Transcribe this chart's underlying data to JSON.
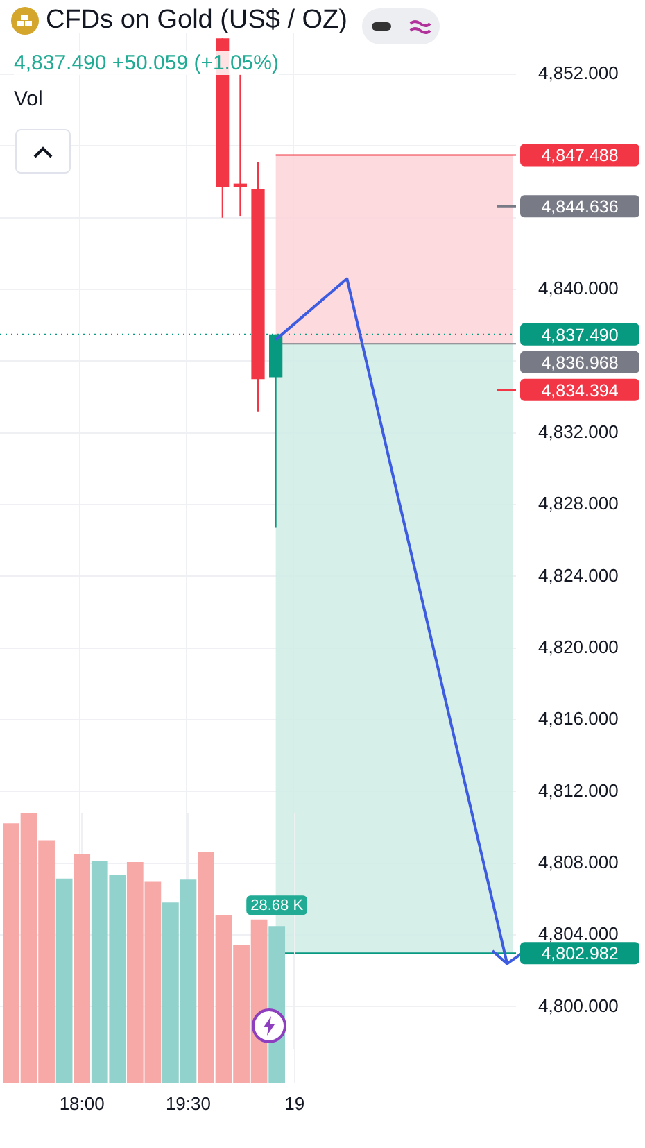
{
  "chart_data": [
    {
      "type": "candlestick",
      "title": "CFDs on Gold (US$ / OZ)",
      "subtitle": "4,837.490 +50.059 (+1.05%)",
      "categories": [
        null,
        null,
        null,
        null,
        null,
        null,
        null,
        null,
        null,
        null,
        null,
        null,
        null,
        null,
        null,
        null,
        null,
        null,
        null,
        null,
        null,
        null,
        null,
        null,
        null,
        null,
        null,
        null,
        null
      ],
      "ohlc": [
        null,
        null,
        null,
        null,
        null,
        null,
        null,
        null,
        null,
        null,
        null,
        null,
        [
          4854,
          4854,
          4844,
          4845.7
        ],
        [
          4845.9,
          4852,
          4844.1,
          4845.7
        ],
        [
          4845.6,
          4847.1,
          4833.2,
          4835
        ],
        [
          4835.1,
          4837.49,
          4826.7,
          4837.49
        ],
        null,
        null,
        null,
        null,
        null,
        null,
        null,
        null,
        null,
        null,
        null,
        null,
        null
      ],
      "colors": [
        null,
        null,
        null,
        null,
        null,
        null,
        null,
        null,
        null,
        null,
        null,
        null,
        "#f23645",
        "#f23645",
        "#f23645",
        "#089981",
        null,
        null,
        null,
        null,
        null,
        null,
        null,
        null,
        null,
        null,
        null,
        null,
        null
      ],
      "series": [
        {
          "type": "line",
          "color": "#3d5ce0",
          "values": [
            null,
            null,
            null,
            null,
            null,
            null,
            null,
            null,
            null,
            null,
            null,
            null,
            null,
            null,
            null,
            4837.2,
            null,
            null,
            null,
            4840.6,
            null,
            null,
            null,
            null,
            null,
            null,
            null,
            null,
            4802.4
          ]
        }
      ],
      "ylim": [
        4797.6,
        4854.3
      ],
      "yticks": [
        {
          "value": 4800,
          "label": "4,800.000"
        },
        {
          "value": 4804,
          "label": "4,804.000"
        },
        {
          "value": 4808,
          "label": "4,808.000"
        },
        {
          "value": 4812,
          "label": "4,812.000"
        },
        {
          "value": 4816,
          "label": "4,816.000"
        },
        {
          "value": 4820,
          "label": "4,820.000"
        },
        {
          "value": 4824,
          "label": "4,824.000"
        },
        {
          "value": 4828,
          "label": "4,828.000"
        },
        {
          "value": 4832,
          "label": "4,832.000"
        },
        {
          "value": 4836,
          "label": null
        },
        {
          "value": 4840,
          "label": "4,840.000"
        },
        {
          "value": 4844,
          "label": null
        },
        {
          "value": 4848,
          "label": null
        },
        {
          "value": 4852,
          "label": "4,852.000"
        }
      ],
      "bands": [
        {
          "axis": "y",
          "from": 4836.968,
          "to": 4847.488,
          "color": "#fbd4d8"
        },
        {
          "axis": "y",
          "from": 4802.982,
          "to": 4836.968,
          "color": "#cfece5"
        }
      ],
      "ref_lines": [
        {
          "axis": "y",
          "value": 4847.488,
          "label": "4,847.488",
          "color": "#f23645",
          "line_style": "solid"
        },
        {
          "axis": "y",
          "value": 4844.636,
          "label": "4,844.636",
          "color": "#787b86"
        },
        {
          "axis": "y",
          "value": 4837.49,
          "label": "4,837.490",
          "color": "#089981",
          "line_style": "dotted"
        },
        {
          "axis": "y",
          "value": 4836.968,
          "label": "4,836.968",
          "color": "#787b86",
          "line_style": "solid"
        },
        {
          "axis": "y",
          "value": 4834.394,
          "label": "4,834.394",
          "color": "#f23645"
        },
        {
          "axis": "y",
          "value": 4802.982,
          "label": "4,802.982",
          "color": "#089981",
          "line_style": "solid"
        }
      ],
      "grid": true,
      "tick_labels": "y"
    },
    {
      "type": "bar",
      "title": "Vol",
      "categories": [
        null,
        null,
        null,
        null,
        "18:00",
        null,
        null,
        null,
        null,
        null,
        "19:30",
        null,
        null,
        null,
        null,
        null,
        "19",
        null,
        null,
        null,
        null,
        null,
        null,
        null,
        null,
        null,
        null,
        null,
        null
      ],
      "values": [
        47.5,
        49.3,
        44.4,
        37.4,
        41.9,
        40.6,
        38.1,
        40.4,
        36.8,
        33.0,
        37.2,
        42.2,
        30.7,
        25.2,
        29.9,
        28.68,
        null,
        null,
        null,
        null,
        null,
        null,
        null,
        null,
        null,
        null,
        null,
        null,
        null
      ],
      "colors": [
        "#f7a9a7",
        "#f7a9a7",
        "#f7a9a7",
        "#92d2cc",
        "#f7a9a7",
        "#92d2cc",
        "#92d2cc",
        "#f7a9a7",
        "#f7a9a7",
        "#92d2cc",
        "#92d2cc",
        "#f7a9a7",
        "#f7a9a7",
        "#f7a9a7",
        "#f7a9a7",
        "#92d2cc",
        null,
        null,
        null,
        null,
        null,
        null,
        null,
        null,
        null,
        null,
        null,
        null,
        null
      ],
      "value_labels": [
        null,
        null,
        null,
        null,
        null,
        null,
        null,
        null,
        null,
        null,
        null,
        null,
        null,
        null,
        null,
        "28.68 K",
        null,
        null,
        null,
        null,
        null,
        null,
        null,
        null,
        null,
        null,
        null,
        null,
        null
      ],
      "grid": "x",
      "tick_labels": "x"
    }
  ]
}
